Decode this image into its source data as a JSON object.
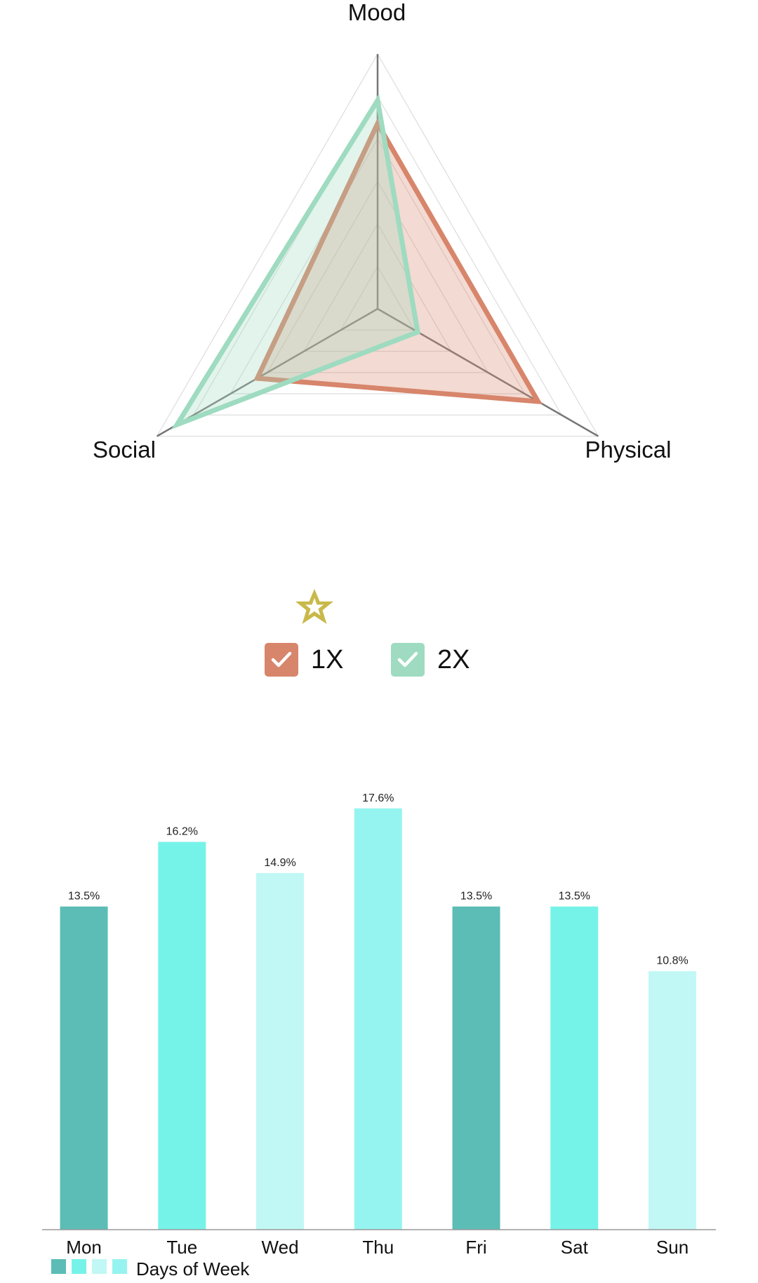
{
  "radar_legend": {
    "star_icon": "star-icon",
    "star_color": "#c9b94a",
    "items": [
      {
        "label": "1X",
        "color": "#d7856b",
        "checked": true,
        "icon": "checkmark-icon"
      },
      {
        "label": "2X",
        "color": "#9edbc0",
        "checked": true,
        "icon": "checkmark-icon"
      }
    ]
  },
  "chart_data": [
    {
      "type": "radar",
      "axes": [
        "Mood",
        "Physical",
        "Social"
      ],
      "grid": true,
      "series": [
        {
          "name": "1X",
          "color": "#d7856b",
          "values": [
            0.8,
            0.8,
            0.6
          ]
        },
        {
          "name": "2X",
          "color": "#9edbc0",
          "values": [
            0.9,
            0.2,
            1.0
          ]
        }
      ],
      "range": [
        0,
        1.1
      ]
    },
    {
      "type": "bar",
      "categories": [
        "Mon",
        "Tue",
        "Wed",
        "Thu",
        "Fri",
        "Sat",
        "Sun"
      ],
      "values": [
        13.5,
        16.2,
        14.9,
        17.6,
        13.5,
        13.5,
        10.8
      ],
      "value_labels": [
        "13.5%",
        "16.2%",
        "14.9%",
        "17.6%",
        "13.5%",
        "13.5%",
        "10.8%"
      ],
      "colors": [
        "#5bbdb6",
        "#76f3e9",
        "#c1f7f4",
        "#95f4ef",
        "#5bbdb6",
        "#76f3e9",
        "#c1f7f4"
      ],
      "legend": {
        "label": "Days of Week",
        "swatches": [
          "#5bbdb6",
          "#76f3e9",
          "#c1f7f4",
          "#95f4ef"
        ],
        "position": "bottom-left"
      },
      "ylim": [
        0,
        20
      ],
      "grid": false
    }
  ]
}
